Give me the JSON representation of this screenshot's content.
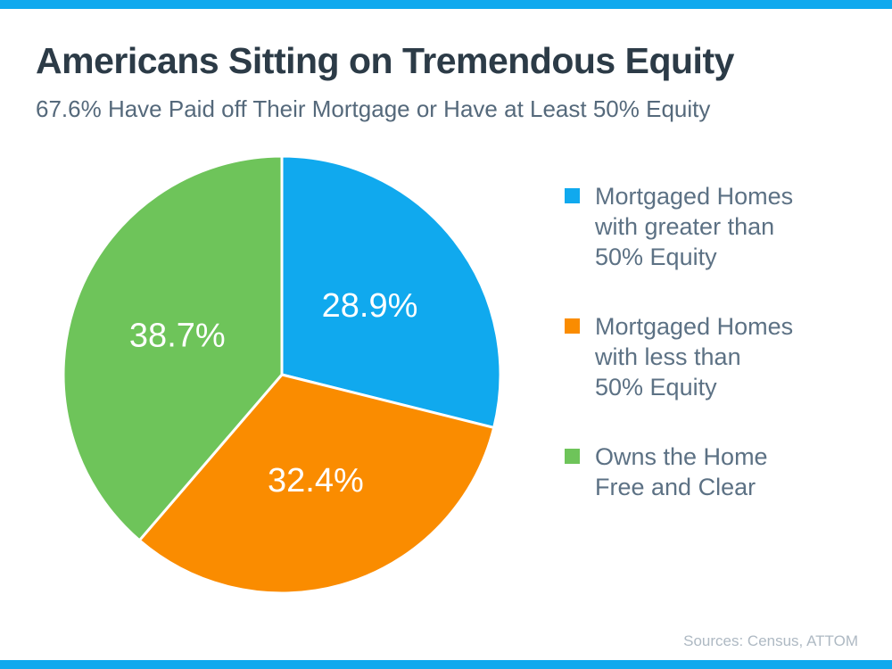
{
  "header": {
    "title": "Americans Sitting on Tremendous Equity",
    "subtitle": "67.6% Have Paid off Their Mortgage or Have at Least 50% Equity"
  },
  "chart_data": {
    "type": "pie",
    "title": "Americans Sitting on Tremendous Equity",
    "subtitle": "67.6% Have Paid off Their Mortgage or Have at Least 50% Equity",
    "categories": [
      "Mortgaged Homes with greater than 50% Equity",
      "Mortgaged Homes with less than 50% Equity",
      "Owns the Home Free and Clear"
    ],
    "values": [
      28.9,
      32.4,
      38.7
    ],
    "slice_labels": [
      "28.9%",
      "32.4%",
      "38.7%"
    ],
    "colors": [
      "#10A9EE",
      "#FA8C00",
      "#6EC45A"
    ],
    "start_angle_deg": 0,
    "direction": "clockwise",
    "slice_label_color": "#FFFFFF",
    "slice_separator_color": "#FFFFFF",
    "legend_position": "right"
  },
  "legend": {
    "items": [
      {
        "label": "Mortgaged Homes\nwith greater than\n50% Equity",
        "color": "#10A9EE"
      },
      {
        "label": "Mortgaged Homes\nwith less than\n50% Equity",
        "color": "#FA8C00"
      },
      {
        "label": "Owns the Home\nFree and Clear",
        "color": "#6EC45A"
      }
    ]
  },
  "footer": {
    "source": "Sources: Census, ATTOM"
  },
  "colors": {
    "accent_bar": "#10A9EE",
    "title_text": "#2C3B47",
    "subtitle_text": "#55697B",
    "legend_text": "#5C7184",
    "source_text": "#AEB9C3",
    "background": "#FFFFFF"
  }
}
